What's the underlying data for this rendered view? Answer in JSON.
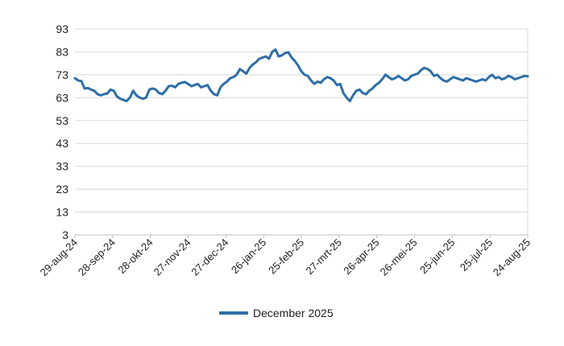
{
  "chart_data": {
    "type": "line",
    "title": "",
    "xlabel": "",
    "ylabel": "",
    "ylim": [
      3,
      93
    ],
    "yticks": [
      3,
      13,
      23,
      33,
      43,
      53,
      63,
      73,
      83,
      93
    ],
    "xtick_labels": [
      "29-aug-24",
      "28-sep-24",
      "28-okt-24",
      "27-nov-24",
      "27-dec-24",
      "26-jan-25",
      "25-feb-25",
      "27-mrt-25",
      "26-apr-25",
      "26-mei-25",
      "25-jun-25",
      "25-jul-25",
      "24-aug-25"
    ],
    "grid": true,
    "legend_position": "bottom",
    "series": [
      {
        "name": "December 2025",
        "color": "#2e6ea6",
        "x_start": "2024-08-29",
        "x_end": "2025-08-24",
        "values": [
          71.5,
          70.5,
          70.2,
          67.0,
          67.2,
          66.5,
          66.0,
          64.5,
          64.0,
          64.5,
          64.8,
          66.5,
          66.0,
          63.5,
          62.5,
          62.0,
          61.5,
          63.0,
          66.0,
          64.0,
          63.0,
          62.5,
          63.0,
          66.5,
          67.0,
          66.5,
          65.0,
          64.5,
          66.0,
          68.0,
          68.2,
          67.5,
          69.0,
          69.5,
          69.8,
          69.0,
          68.0,
          68.5,
          69.0,
          67.5,
          68.0,
          68.5,
          66.0,
          64.5,
          64.0,
          67.5,
          69.0,
          70.0,
          71.5,
          72.0,
          73.0,
          75.5,
          74.5,
          73.5,
          76.0,
          77.5,
          78.5,
          80.0,
          80.5,
          81.0,
          80.0,
          83.0,
          84.0,
          81.0,
          81.5,
          82.5,
          82.8,
          80.5,
          79.0,
          77.0,
          74.5,
          73.0,
          72.5,
          70.5,
          69.0,
          70.0,
          69.5,
          71.0,
          72.0,
          71.5,
          70.5,
          68.5,
          69.0,
          65.0,
          63.0,
          61.5,
          64.0,
          66.0,
          66.5,
          65.0,
          64.5,
          66.0,
          67.0,
          68.5,
          69.5,
          71.0,
          73.0,
          72.0,
          71.0,
          71.5,
          72.5,
          71.5,
          70.5,
          71.0,
          72.5,
          73.0,
          73.5,
          75.0,
          76.0,
          75.5,
          74.5,
          72.5,
          73.0,
          71.5,
          70.5,
          70.0,
          71.0,
          72.0,
          71.5,
          71.0,
          70.5,
          71.5,
          71.0,
          70.5,
          70.0,
          70.5,
          71.0,
          70.5,
          72.0,
          73.0,
          71.5,
          72.0,
          71.0,
          71.5,
          72.5,
          72.0,
          71.0,
          71.5,
          72.0,
          72.5,
          72.3
        ]
      }
    ]
  }
}
